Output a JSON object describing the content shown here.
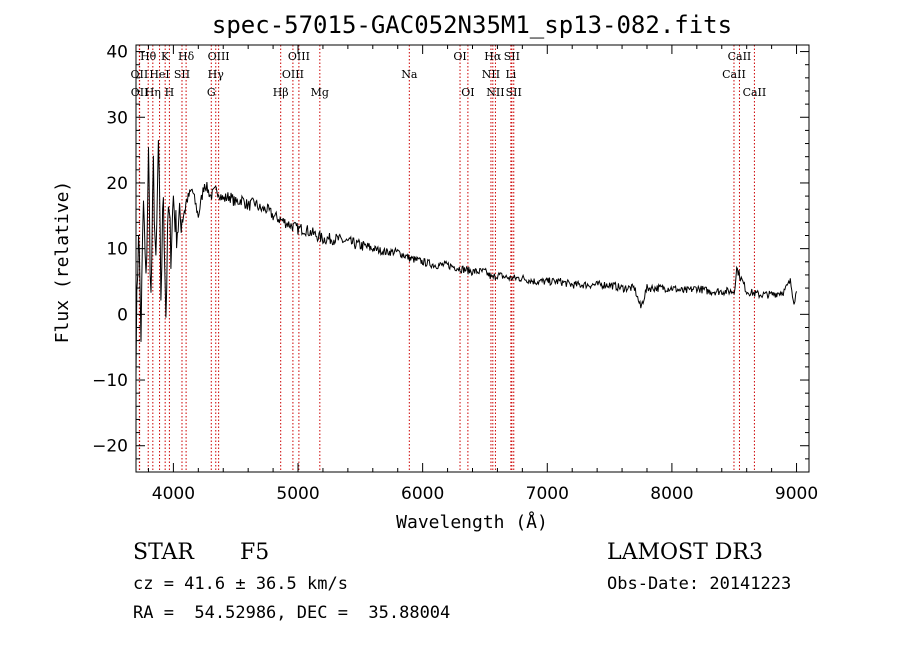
{
  "chart_data": {
    "type": "line",
    "title": "spec-57015-GAC052N35M1_sp13-082.fits",
    "xlabel": "Wavelength (Å)",
    "ylabel": "Flux (relative)",
    "xlim": [
      3700,
      9100
    ],
    "ylim": [
      -24,
      41
    ],
    "xticks": [
      4000,
      5000,
      6000,
      7000,
      8000,
      9000
    ],
    "yticks": [
      -20,
      -10,
      0,
      10,
      20,
      30,
      40
    ],
    "line_color": "#000000",
    "marker_color": "#cc0000",
    "spectrum": {
      "name": "Flux",
      "x": [
        3700,
        3720,
        3740,
        3760,
        3780,
        3800,
        3820,
        3840,
        3860,
        3880,
        3900,
        3920,
        3940,
        3960,
        3980,
        4000,
        4020,
        4050,
        4100,
        4150,
        4200,
        4250,
        4300,
        4350,
        4400,
        4450,
        4500,
        4550,
        4600,
        4650,
        4700,
        4750,
        4800,
        4850,
        4900,
        4950,
        5000,
        5050,
        5100,
        5150,
        5200,
        5300,
        5400,
        5500,
        5600,
        5700,
        5800,
        5900,
        6000,
        6100,
        6200,
        6300,
        6400,
        6500,
        6560,
        6600,
        6700,
        6800,
        6900,
        7000,
        7100,
        7200,
        7300,
        7400,
        7500,
        7600,
        7700,
        7750,
        7800,
        7900,
        8000,
        8100,
        8200,
        8300,
        8400,
        8500,
        8520,
        8600,
        8700,
        8800,
        8900,
        8950,
        8980,
        9000
      ],
      "y": [
        -6,
        14,
        -3,
        17,
        4,
        24,
        2,
        22,
        6,
        26,
        3,
        19,
        0,
        16,
        10,
        18,
        13,
        14,
        17,
        19,
        15,
        20,
        18,
        19,
        17.5,
        18,
        17,
        17.5,
        16.5,
        17,
        16,
        16,
        15,
        14.5,
        14,
        13.5,
        13,
        13,
        12.5,
        12,
        11.5,
        11.5,
        11,
        10.5,
        10,
        9.5,
        9.5,
        8.5,
        8,
        7.5,
        7.5,
        7,
        6.5,
        6.5,
        5.5,
        6,
        5.5,
        5.5,
        5,
        5,
        5,
        4.5,
        4.5,
        4.5,
        4.5,
        4,
        4,
        1,
        4,
        4,
        4,
        3.5,
        4,
        3.5,
        3.5,
        3.5,
        7,
        3.5,
        3,
        3,
        3.5,
        5,
        2,
        3.5
      ]
    },
    "lines": [
      {
        "label": "Hθ",
        "x": 3798,
        "row": 0
      },
      {
        "label": "OII",
        "x": 3727,
        "row": 1
      },
      {
        "label": "OII",
        "x": 3729,
        "row": 2
      },
      {
        "label": "K",
        "x": 3934,
        "row": 0
      },
      {
        "label": "HeI",
        "x": 3889,
        "row": 1
      },
      {
        "label": "Hη",
        "x": 3835,
        "row": 2
      },
      {
        "label": "SII",
        "x": 4069,
        "row": 1
      },
      {
        "label": "H",
        "x": 3968,
        "row": 2
      },
      {
        "label": "Hδ",
        "x": 4102,
        "row": 0
      },
      {
        "label": "OIII",
        "x": 4363,
        "row": 0
      },
      {
        "label": "Hγ",
        "x": 4340,
        "row": 1
      },
      {
        "label": "G",
        "x": 4304,
        "row": 2
      },
      {
        "label": "OIII",
        "x": 5007,
        "row": 0
      },
      {
        "label": "OIII",
        "x": 4959,
        "row": 1
      },
      {
        "label": "Hβ",
        "x": 4861,
        "row": 2
      },
      {
        "label": "Mg",
        "x": 5175,
        "row": 2
      },
      {
        "label": "Na",
        "x": 5893,
        "row": 1
      },
      {
        "label": "OI",
        "x": 6300,
        "row": 0
      },
      {
        "label": "OI",
        "x": 6363,
        "row": 2
      },
      {
        "label": "Hα",
        "x": 6563,
        "row": 0
      },
      {
        "label": "SII",
        "x": 6716,
        "row": 0
      },
      {
        "label": "NII",
        "x": 6548,
        "row": 1
      },
      {
        "label": "Li",
        "x": 6708,
        "row": 1
      },
      {
        "label": "NII",
        "x": 6584,
        "row": 2
      },
      {
        "label": "SII",
        "x": 6731,
        "row": 2
      },
      {
        "label": "CaII",
        "x": 8542,
        "row": 0
      },
      {
        "label": "CaII",
        "x": 8498,
        "row": 1
      },
      {
        "label": "CaII",
        "x": 8662,
        "row": 2
      }
    ]
  },
  "info": {
    "class_label": "STAR",
    "subclass": "F5",
    "survey": "LAMOST DR3",
    "cz": "cz = 41.6 ± 36.5 km/s",
    "obs_date": "Obs-Date: 20141223",
    "coords": "RA =  54.52986, DEC =  35.88004"
  }
}
